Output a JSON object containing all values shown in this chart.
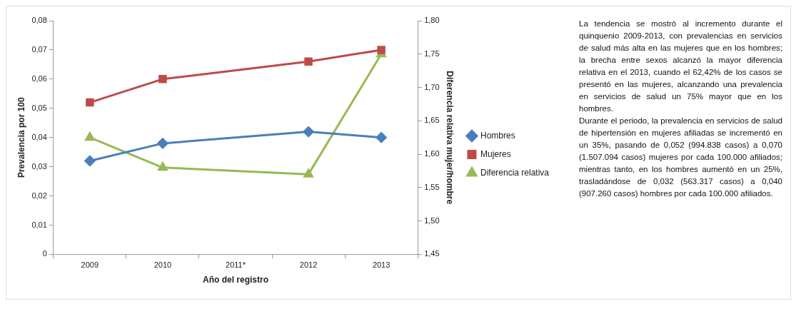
{
  "chart_data": {
    "type": "line",
    "xlabel": "Año del registro",
    "ylabel": "Prevalencia por 100",
    "y2label": "Diferencia relativa mujer/hombre",
    "categories": [
      "2009",
      "2010",
      "2011*",
      "2012",
      "2013"
    ],
    "series": [
      {
        "name": "Hombres",
        "color": "#4a7ebb",
        "marker": "diamond",
        "values": [
          0.032,
          0.038,
          null,
          0.042,
          0.04
        ]
      },
      {
        "name": "Mujeres",
        "color": "#be4b48",
        "marker": "square",
        "values": [
          0.052,
          0.06,
          null,
          0.066,
          0.07
        ]
      },
      {
        "name": "Diferencia relativa",
        "color": "#98b954",
        "marker": "triangle",
        "axis": "y2",
        "values": [
          1.625,
          1.58,
          null,
          1.57,
          1.75
        ]
      }
    ],
    "ylim": [
      0,
      0.08
    ],
    "yticks": [
      0,
      {
        "value": 0.01,
        "label": "0,01"
      },
      {
        "value": 0.02,
        "label": "0,02"
      },
      {
        "value": 0.03,
        "label": "0,03"
      },
      {
        "value": 0.04,
        "label": "0,04"
      },
      {
        "value": 0.05,
        "label": "0,05"
      },
      {
        "value": 0.06,
        "label": "0,06"
      },
      {
        "value": 0.07,
        "label": "0,07"
      },
      {
        "value": 0.08,
        "label": "0,08"
      }
    ],
    "y2lim": [
      1.45,
      1.8
    ],
    "y2ticks": [
      {
        "value": 1.45,
        "label": "1,45"
      },
      {
        "value": 1.5,
        "label": "1,50"
      },
      {
        "value": 1.55,
        "label": "1,55"
      },
      {
        "value": 1.6,
        "label": "1,60"
      },
      {
        "value": 1.65,
        "label": "1,65"
      },
      {
        "value": 1.7,
        "label": "1,70"
      },
      {
        "value": 1.75,
        "label": "1,75"
      },
      {
        "value": 1.8,
        "label": "1,80"
      }
    ],
    "legend": "right",
    "annotations": [
      "La tendencia se mostró al incremento durante el quinquenio 2009-2013, con prevalencias en servicios de salud más alta en las mujeres que en los hombres; la brecha entre sexos alcanzó la mayor diferencia relativa en el 2013, cuando el 62,42% de los casos se presentó en las mujeres, alcanzando una prevalencia en servicios de salud un 75% mayor que en los hombres.",
      "Durante el periodo, la prevalencia en servicios de salud de hipertensión en mujeres afiliadas se incrementó en un 35%, pasando de 0,052 (994.838 casos) a 0,070 (1.507.094 casos) mujeres por cada 100.000 afiliados; mientras tanto, en los hombres aumentó en un 25%, trasladándose de 0,032 (563.317 casos) a 0,040 (907.260 casos) hombres por cada 100.000 afiliados."
    ]
  }
}
